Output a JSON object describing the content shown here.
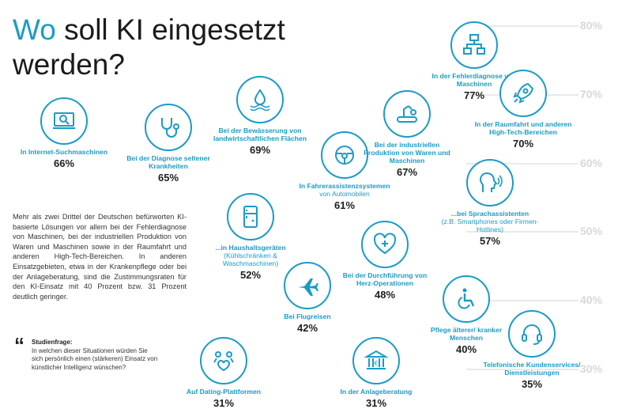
{
  "title": {
    "highlight": "Wo",
    "rest_line1": " soll KI eingesetzt",
    "line2": "werden?"
  },
  "body_text": "Mehr als zwei Drittel der Deutschen befürworten KI-basierte Lösungen vor allem bei der Fehlerdiagnose von Maschinen, bei der industriellen Produktion von Waren und Maschinen sowie in der Raumfahrt und anderen High-Tech-Bereichen. In anderen Einsatzgebieten, etwa in der Krankenpflege oder bei der Anlageberatung, sind die Zustimmungsraten für den KI-Einsatz mit 40 Prozent bzw. 31 Prozent deutlich geringer.",
  "study": {
    "quote_mark": "“",
    "heading": "Studienfrage:",
    "text": "In welchen dieser Situationen würden Sie sich persönlich einen (stärkeren) Einsatz von künstlicher Intelligenz wünschen?"
  },
  "colors": {
    "accent": "#1a9bc7",
    "grid": "#e9e9e9",
    "tick": "#d8d8d8"
  },
  "chart_data": {
    "type": "scatter",
    "title": "Wo soll KI eingesetzt werden?",
    "ylabel": "",
    "ylim": [
      30,
      80
    ],
    "ticks": [
      "80%",
      "70%",
      "60%",
      "50%",
      "40%",
      "30%"
    ],
    "points": [
      {
        "label": "In Internet-Suchmaschinen",
        "sub": "",
        "value": 66,
        "value_label": "66%",
        "icon": "laptop-search-icon"
      },
      {
        "label": "Bei der Diagnose seltener Krankheiten",
        "sub": "",
        "value": 65,
        "value_label": "65%",
        "icon": "stethoscope-icon"
      },
      {
        "label": "Bei der Bewässerung von landwirtschaftlichen Flächen",
        "sub": "",
        "value": 69,
        "value_label": "69%",
        "icon": "water-drop-icon"
      },
      {
        "label": "In Fahrerassistenzsystemen",
        "sub": "von Automobilen",
        "value": 61,
        "value_label": "61%",
        "icon": "steering-wheel-icon"
      },
      {
        "label": "Bei der industriellen Produktion von Waren und Maschinen",
        "sub": "",
        "value": 67,
        "value_label": "67%",
        "icon": "conveyor-robot-icon"
      },
      {
        "label": "In der Fehlerdiagnose von Maschinen",
        "sub": "",
        "value": 77,
        "value_label": "77%",
        "icon": "flowchart-icon"
      },
      {
        "label": "In der Raumfahrt und anderen High-Tech-Bereichen",
        "sub": "",
        "value": 70,
        "value_label": "70%",
        "icon": "rocket-icon"
      },
      {
        "label": "...bei Sprachassistenten",
        "sub": "(z.B. Smartphones oder Firmen-Hotlines)",
        "value": 57,
        "value_label": "57%",
        "icon": "speaking-head-icon"
      },
      {
        "label": "...in Haushaltsgeräten",
        "sub": "(Kühlschränken & Waschmaschinen)",
        "value": 52,
        "value_label": "52%",
        "icon": "fridge-icon"
      },
      {
        "label": "Bei der Durchführung von Herz-Operationen",
        "sub": "",
        "value": 48,
        "value_label": "48%",
        "icon": "heart-plus-icon"
      },
      {
        "label": "Bei Flugreisen",
        "sub": "",
        "value": 42,
        "value_label": "42%",
        "icon": "airplane-icon"
      },
      {
        "label": "Pflege älterer/ kranker Menschen",
        "sub": "",
        "value": 40,
        "value_label": "40%",
        "icon": "wheelchair-icon"
      },
      {
        "label": "Telefonische Kundenservices/ Dienstleistungen",
        "sub": "",
        "value": 35,
        "value_label": "35%",
        "icon": "headset-icon"
      },
      {
        "label": "Auf Dating-Plattformen",
        "sub": "",
        "value": 31,
        "value_label": "31%",
        "icon": "dating-hearts-icon"
      },
      {
        "label": "In der Anlageberatung",
        "sub": "",
        "value": 31,
        "value_label": "31%",
        "icon": "bank-icon"
      }
    ]
  }
}
